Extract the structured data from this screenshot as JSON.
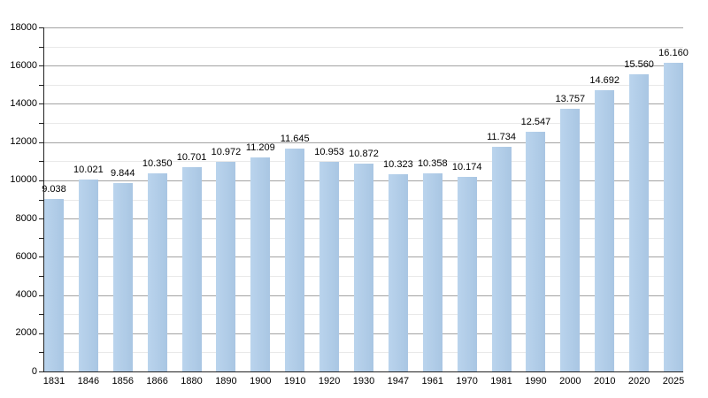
{
  "chart_data": {
    "type": "bar",
    "title": "",
    "xlabel": "",
    "ylabel": "",
    "categories": [
      "1831",
      "1846",
      "1856",
      "1866",
      "1880",
      "1890",
      "1900",
      "1910",
      "1920",
      "1930",
      "1947",
      "1961",
      "1970",
      "1981",
      "1990",
      "2000",
      "2010",
      "2020",
      "2025"
    ],
    "values": [
      9038,
      10021,
      9844,
      10350,
      10701,
      10972,
      11209,
      11645,
      10953,
      10872,
      10323,
      10358,
      10174,
      11734,
      12547,
      13757,
      14692,
      15560,
      16160
    ],
    "value_labels": [
      "9.038",
      "10.021",
      "9.844",
      "10.350",
      "10.701",
      "10.972",
      "11.209",
      "11.645",
      "10.953",
      "10.872",
      "10.323",
      "10.358",
      "10.174",
      "11.734",
      "12.547",
      "13.757",
      "14.692",
      "15.560",
      "16.160"
    ],
    "ylim": [
      0,
      18000
    ],
    "y_major_step": 2000,
    "y_minor_step": 1000,
    "y_tick_labels": [
      "0",
      "2000",
      "4000",
      "6000",
      "8000",
      "10000",
      "12000",
      "14000",
      "16000",
      "18000"
    ],
    "grid": true,
    "legend": false
  },
  "colors": {
    "background": "#ffffff",
    "bar_gradient_start": "#bad4ed",
    "bar_gradient_end": "#a9c6e3",
    "major_grid": "#a3a3a3",
    "minor_grid": "#e9e9e9",
    "axis": "#222222",
    "text": "#000000"
  }
}
